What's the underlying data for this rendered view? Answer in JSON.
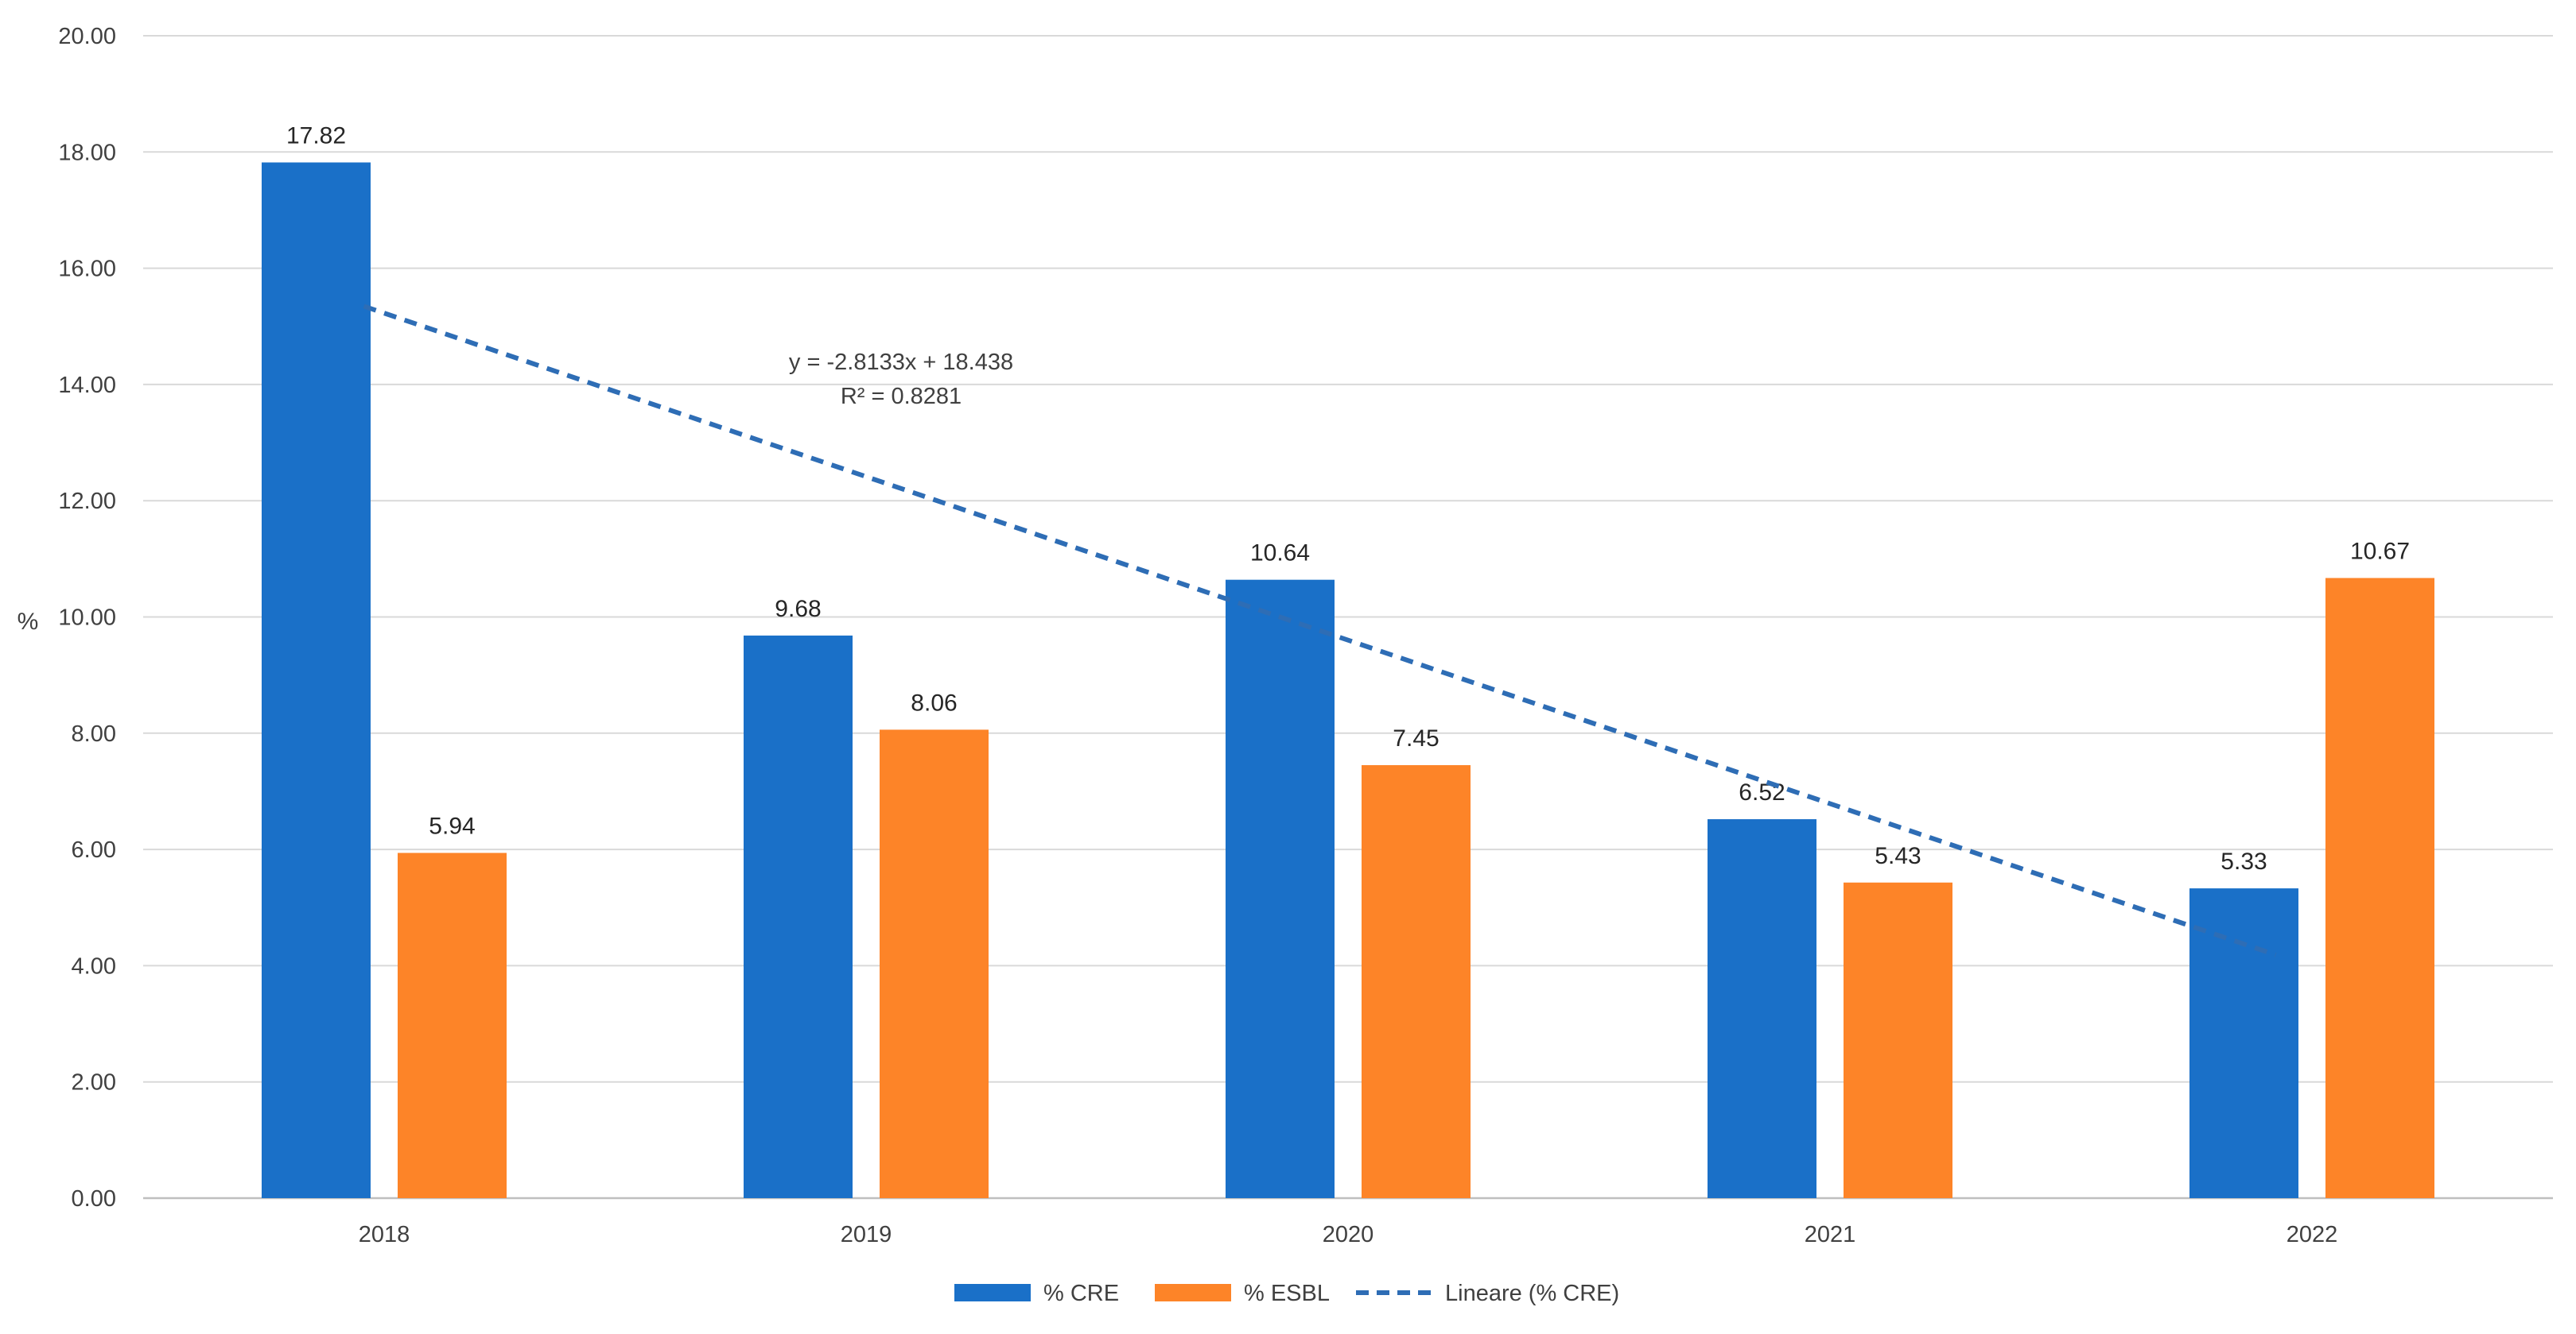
{
  "chart_data": {
    "type": "bar",
    "categories": [
      "2018",
      "2019",
      "2020",
      "2021",
      "2022"
    ],
    "series": [
      {
        "name": "% CRE",
        "values": [
          17.82,
          9.68,
          10.64,
          6.52,
          5.33
        ],
        "color": "#1a70c8"
      },
      {
        "name": "% ESBL",
        "values": [
          5.94,
          8.06,
          7.45,
          5.43,
          10.67
        ],
        "color": "#fd8428"
      }
    ],
    "trendline": {
      "name": "Lineare (% CRE)",
      "of_series": "% CRE",
      "slope": -2.8133,
      "intercept": 18.438,
      "color": "#2e6db5",
      "style": "dashed",
      "equation": "y = -2.8133x + 18.438",
      "r_squared": "R² = 0.8281"
    },
    "data_labels": [
      [
        "17.82",
        "9.68",
        "10.64",
        "6.52",
        "5.33"
      ],
      [
        "5.94",
        "8.06",
        "7.45",
        "5.43",
        "10.67"
      ]
    ],
    "y_ticks": [
      "0.00",
      "2.00",
      "4.00",
      "6.00",
      "8.00",
      "10.00",
      "12.00",
      "14.00",
      "16.00",
      "18.00",
      "20.00"
    ],
    "ylim": [
      0,
      20
    ],
    "ylabel": "%",
    "xlabel": "",
    "title": "",
    "grid": true,
    "legend_position": "bottom-center",
    "gridline_color": "#d9d9d9",
    "axis_color": "#bfbfbf"
  }
}
